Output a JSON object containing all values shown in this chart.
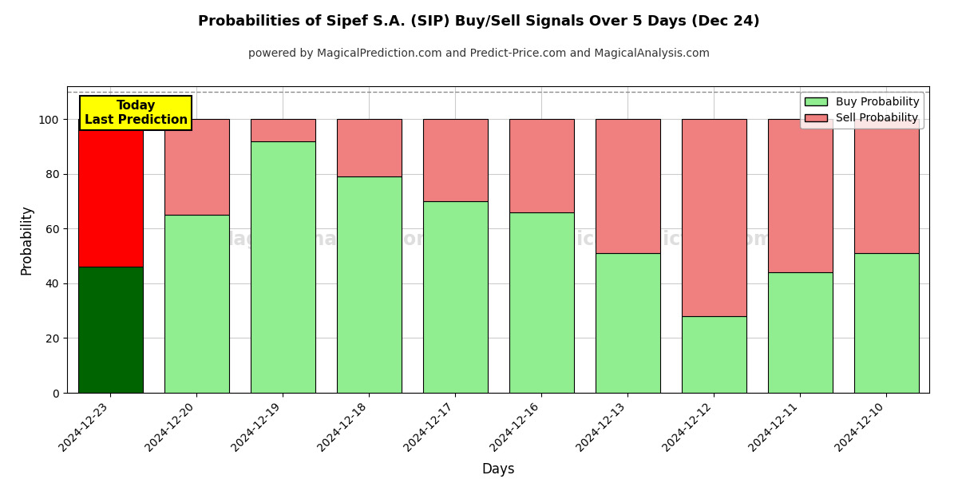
{
  "title": "Probabilities of Sipef S.A. (SIP) Buy/Sell Signals Over 5 Days (Dec 24)",
  "subtitle": "powered by MagicalPrediction.com and Predict-Price.com and MagicalAnalysis.com",
  "xlabel": "Days",
  "ylabel": "Probability",
  "categories": [
    "2024-12-23",
    "2024-12-20",
    "2024-12-19",
    "2024-12-18",
    "2024-12-17",
    "2024-12-16",
    "2024-12-13",
    "2024-12-12",
    "2024-12-11",
    "2024-12-10"
  ],
  "buy_values": [
    46,
    65,
    92,
    79,
    70,
    66,
    51,
    28,
    44,
    51
  ],
  "sell_values": [
    54,
    35,
    8,
    21,
    30,
    34,
    49,
    72,
    56,
    49
  ],
  "buy_colors": [
    "#006400",
    "#90EE90",
    "#90EE90",
    "#90EE90",
    "#90EE90",
    "#90EE90",
    "#90EE90",
    "#90EE90",
    "#90EE90",
    "#90EE90"
  ],
  "sell_colors": [
    "#FF0000",
    "#F08080",
    "#F08080",
    "#F08080",
    "#F08080",
    "#F08080",
    "#F08080",
    "#F08080",
    "#F08080",
    "#F08080"
  ],
  "legend_buy_color": "#90EE90",
  "legend_sell_color": "#F08080",
  "today_label": "Today\nLast Prediction",
  "today_label_bg": "#FFFF00",
  "today_label_border": "#000000",
  "ylim": [
    0,
    112
  ],
  "yticks": [
    0,
    20,
    40,
    60,
    80,
    100
  ],
  "dashed_line_y": 110,
  "grid_color": "#CCCCCC",
  "watermark_color": "#C8C8C8",
  "bg_color": "#FFFFFF",
  "bar_edgecolor": "#000000",
  "bar_linewidth": 0.8,
  "bar_width": 0.75
}
